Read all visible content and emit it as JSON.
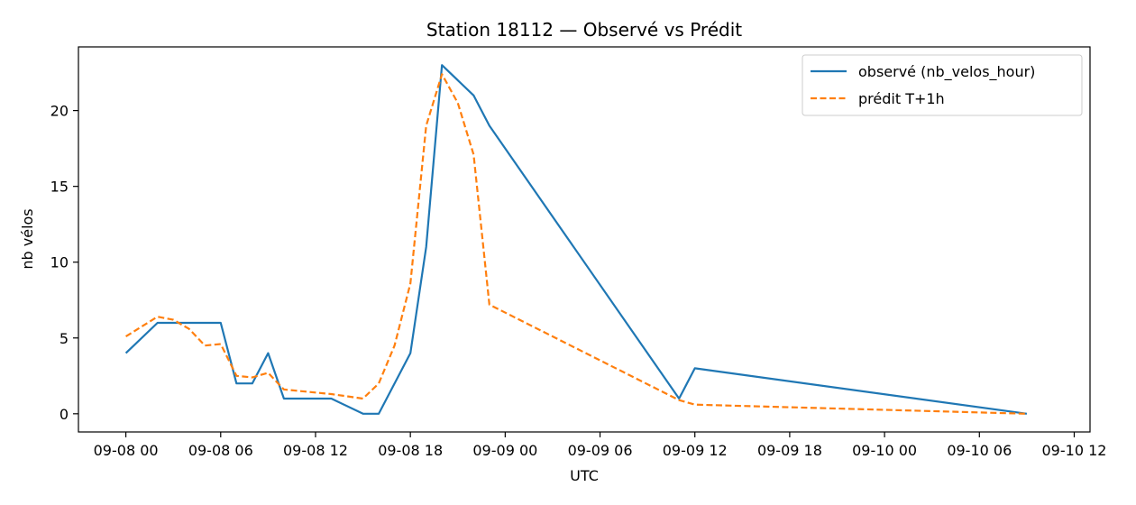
{
  "chart_data": {
    "type": "line",
    "title": "Station 18112 — Observé vs Prédit",
    "xlabel": "UTC",
    "ylabel": "nb vélos",
    "x_tick_labels": [
      "09-08 00",
      "09-08 06",
      "09-08 12",
      "09-08 18",
      "09-09 00",
      "09-09 06",
      "09-09 12",
      "09-09 18",
      "09-10 00",
      "09-10 06",
      "09-10 12"
    ],
    "x_ticks": [
      "2024-09-08T00:00",
      "2024-09-08T06:00",
      "2024-09-08T12:00",
      "2024-09-08T18:00",
      "2024-09-09T00:00",
      "2024-09-09T06:00",
      "2024-09-09T12:00",
      "2024-09-09T18:00",
      "2024-09-10T00:00",
      "2024-09-10T06:00",
      "2024-09-10T12:00"
    ],
    "xlim": [
      "2024-09-07T21:00",
      "2024-09-10T13:00"
    ],
    "y_ticks": [
      0,
      5,
      10,
      15,
      20
    ],
    "ylim": [
      -1.2,
      24.2
    ],
    "grid": false,
    "legend_position": "top-right",
    "series": [
      {
        "name": "observé (nb_velos_hour)",
        "color": "#1f77b4",
        "style": "solid",
        "points": [
          [
            "2024-09-08T00:00",
            4
          ],
          [
            "2024-09-08T02:00",
            6
          ],
          [
            "2024-09-08T03:00",
            6
          ],
          [
            "2024-09-08T04:00",
            6
          ],
          [
            "2024-09-08T05:00",
            6
          ],
          [
            "2024-09-08T06:00",
            6
          ],
          [
            "2024-09-08T07:00",
            2
          ],
          [
            "2024-09-08T08:00",
            2
          ],
          [
            "2024-09-08T09:00",
            4
          ],
          [
            "2024-09-08T10:00",
            1
          ],
          [
            "2024-09-08T11:00",
            1
          ],
          [
            "2024-09-08T12:00",
            1
          ],
          [
            "2024-09-08T13:00",
            1
          ],
          [
            "2024-09-08T15:00",
            0
          ],
          [
            "2024-09-08T16:00",
            0
          ],
          [
            "2024-09-08T18:00",
            4
          ],
          [
            "2024-09-08T19:00",
            11
          ],
          [
            "2024-09-08T20:00",
            23
          ],
          [
            "2024-09-08T22:00",
            21
          ],
          [
            "2024-09-08T23:00",
            19
          ],
          [
            "2024-09-09T11:00",
            1
          ],
          [
            "2024-09-09T12:00",
            3
          ],
          [
            "2024-09-10T09:00",
            0
          ]
        ]
      },
      {
        "name": "prédit T+1h",
        "color": "#ff7f0e",
        "style": "dashed",
        "points": [
          [
            "2024-09-08T00:00",
            5.1
          ],
          [
            "2024-09-08T02:00",
            6.4
          ],
          [
            "2024-09-08T03:00",
            6.2
          ],
          [
            "2024-09-08T04:00",
            5.6
          ],
          [
            "2024-09-08T05:00",
            4.5
          ],
          [
            "2024-09-08T06:00",
            4.6
          ],
          [
            "2024-09-08T07:00",
            2.5
          ],
          [
            "2024-09-08T08:00",
            2.4
          ],
          [
            "2024-09-08T09:00",
            2.7
          ],
          [
            "2024-09-08T10:00",
            1.6
          ],
          [
            "2024-09-08T11:00",
            1.5
          ],
          [
            "2024-09-08T12:00",
            1.4
          ],
          [
            "2024-09-08T13:00",
            1.3
          ],
          [
            "2024-09-08T15:00",
            1.0
          ],
          [
            "2024-09-08T16:00",
            2.0
          ],
          [
            "2024-09-08T17:00",
            4.5
          ],
          [
            "2024-09-08T18:00",
            8.6
          ],
          [
            "2024-09-08T19:00",
            19.0
          ],
          [
            "2024-09-08T20:00",
            22.4
          ],
          [
            "2024-09-08T21:00",
            20.5
          ],
          [
            "2024-09-08T22:00",
            17.1
          ],
          [
            "2024-09-08T23:00",
            7.2
          ],
          [
            "2024-09-09T11:00",
            0.9
          ],
          [
            "2024-09-09T12:00",
            0.6
          ],
          [
            "2024-09-10T09:00",
            0
          ]
        ]
      }
    ]
  }
}
